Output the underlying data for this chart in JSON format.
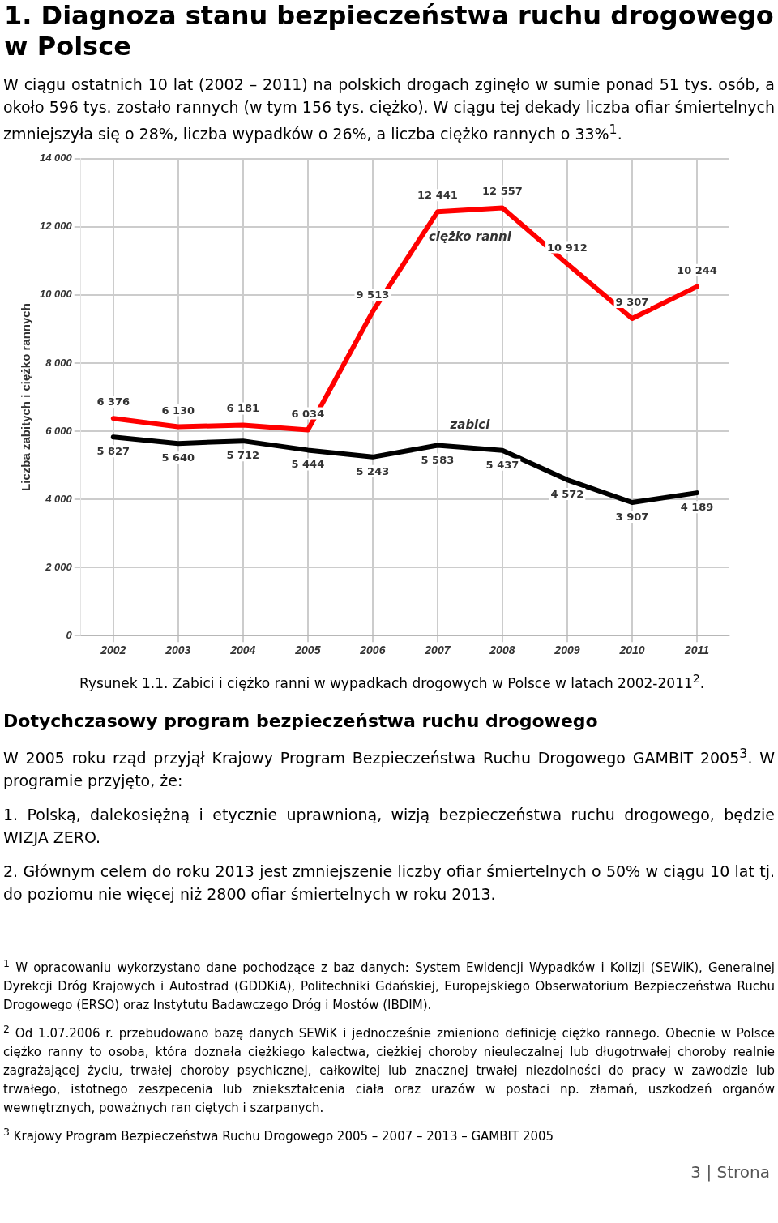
{
  "chart_data": {
    "type": "line",
    "title": "1. Diagnoza stanu bezpieczeństwa ruchu drogowego w Polsce",
    "subtitle": "W ciągu ostatnich 10 lat (2002 – 2011) na polskich drogach zginęło w sumie ponad 51 tys. osób, a około 596 tys. zostało rannych (w tym 156 tys. ciężko). W ciągu tej dekady liczba ofiar śmiertelnych zmniejszyła się o 28%, liczba wypadków o 26%, a liczba ciężko rannych o 33%$^{1}$.",
    "ylabel": "Liczba zabitych i ciężko rannych",
    "categories": [
      "2002",
      "2003",
      "2004",
      "2005",
      "2006",
      "2007",
      "2008",
      "2009",
      "2010",
      "2011"
    ],
    "series": [
      {
        "name": "ciężko ranni",
        "color": "#ff0000",
        "values": [
          6376,
          6130,
          6181,
          6034,
          9513,
          12441,
          12557,
          10912,
          9307,
          10244
        ],
        "value_labels": [
          "6 376",
          "6 130",
          "6 181",
          "6 034",
          "9 513",
          "12 441",
          "12 557",
          "10 912",
          "9 307",
          "10 244"
        ]
      },
      {
        "name": "zabici",
        "color": "#000000",
        "values": [
          5827,
          5640,
          5712,
          5444,
          5243,
          5583,
          5437,
          4572,
          3907,
          4189
        ],
        "value_labels": [
          "5 827",
          "5 640",
          "5 712",
          "5 444",
          "5 243",
          "5 583",
          "5 437",
          "4 572",
          "3 907",
          "4 189"
        ]
      }
    ],
    "ylim": [
      0,
      14000
    ],
    "yticks": [
      {
        "value": 0,
        "label": "0"
      },
      {
        "value": 2000,
        "label": "2 000"
      },
      {
        "value": 4000,
        "label": "4 000"
      },
      {
        "value": 6000,
        "label": "6 000"
      },
      {
        "value": 8000,
        "label": "8 000"
      },
      {
        "value": 10000,
        "label": "10 000"
      },
      {
        "value": 12000,
        "label": "12 000"
      },
      {
        "value": 14000,
        "label": "14 000"
      }
    ],
    "grid": true,
    "legend": false,
    "marker": "none",
    "line_style": "solid",
    "annotations": [
      "Rysunek 1.1. Zabici i ciężko ranni w wypadkach drogowych w Polsce w latach 2002-2011$^{2}$.",
      "Dotychczasowy program bezpieczeństwa ruchu drogowego",
      "W 2005 roku rząd przyjął Krajowy Program Bezpieczeństwa Ruchu Drogowego GAMBIT 2005$^{3}$. W programie przyjęto, że:",
      "1. Polską, dalekosiężną i etycznie uprawnioną, wizją bezpieczeństwa ruchu drogowego, będzie WIZJA ZERO.",
      "2. Głównym celem do roku 2013 jest zmniejszenie liczby ofiar śmiertelnych o 50% w ciągu 10 lat tj. do poziomu nie więcej niż 2800 ofiar śmiertelnych w roku 2013.",
      "$^{1}$ W opracowaniu wykorzystano dane pochodzące z baz danych: System Ewidencji Wypadków i Kolizji (SEWiK), Generalnej Dyrekcji Dróg Krajowych i Autostrad (GDDKiA), Politechniki Gdańskiej, Europejskiego Obserwatorium Bezpieczeństwa Ruchu Drogowego (ERSO) oraz Instytutu Badawczego Dróg i Mostów (IBDIM).",
      "$^{2}$ Od 1.07.2006 r. przebudowano bazę danych SEWiK i jednocześnie zmieniono definicję ciężko rannego. Obecnie w Polsce ciężko ranny to osoba, która doznała ciężkiego kalectwa, ciężkiej choroby nieuleczalnej lub długotrwałej choroby realnie zagrażającej życiu, trwałej choroby psychicznej, całkowitej lub znacznej trwałej niezdolności do pracy w zawodzie lub trwałego, istotnego zeszpecenia lub zniekształcenia ciała oraz urazów w postaci np. złamań, uszkodzeń organów wewnętrznych, poważnych ran ciętych i szarpanych.",
      "$^{3}$ Krajowy Program Bezpieczeństwa Ruchu Drogowego 2005 – 2007 – 2013 – GAMBIT 2005",
      "3 | Strona"
    ]
  }
}
